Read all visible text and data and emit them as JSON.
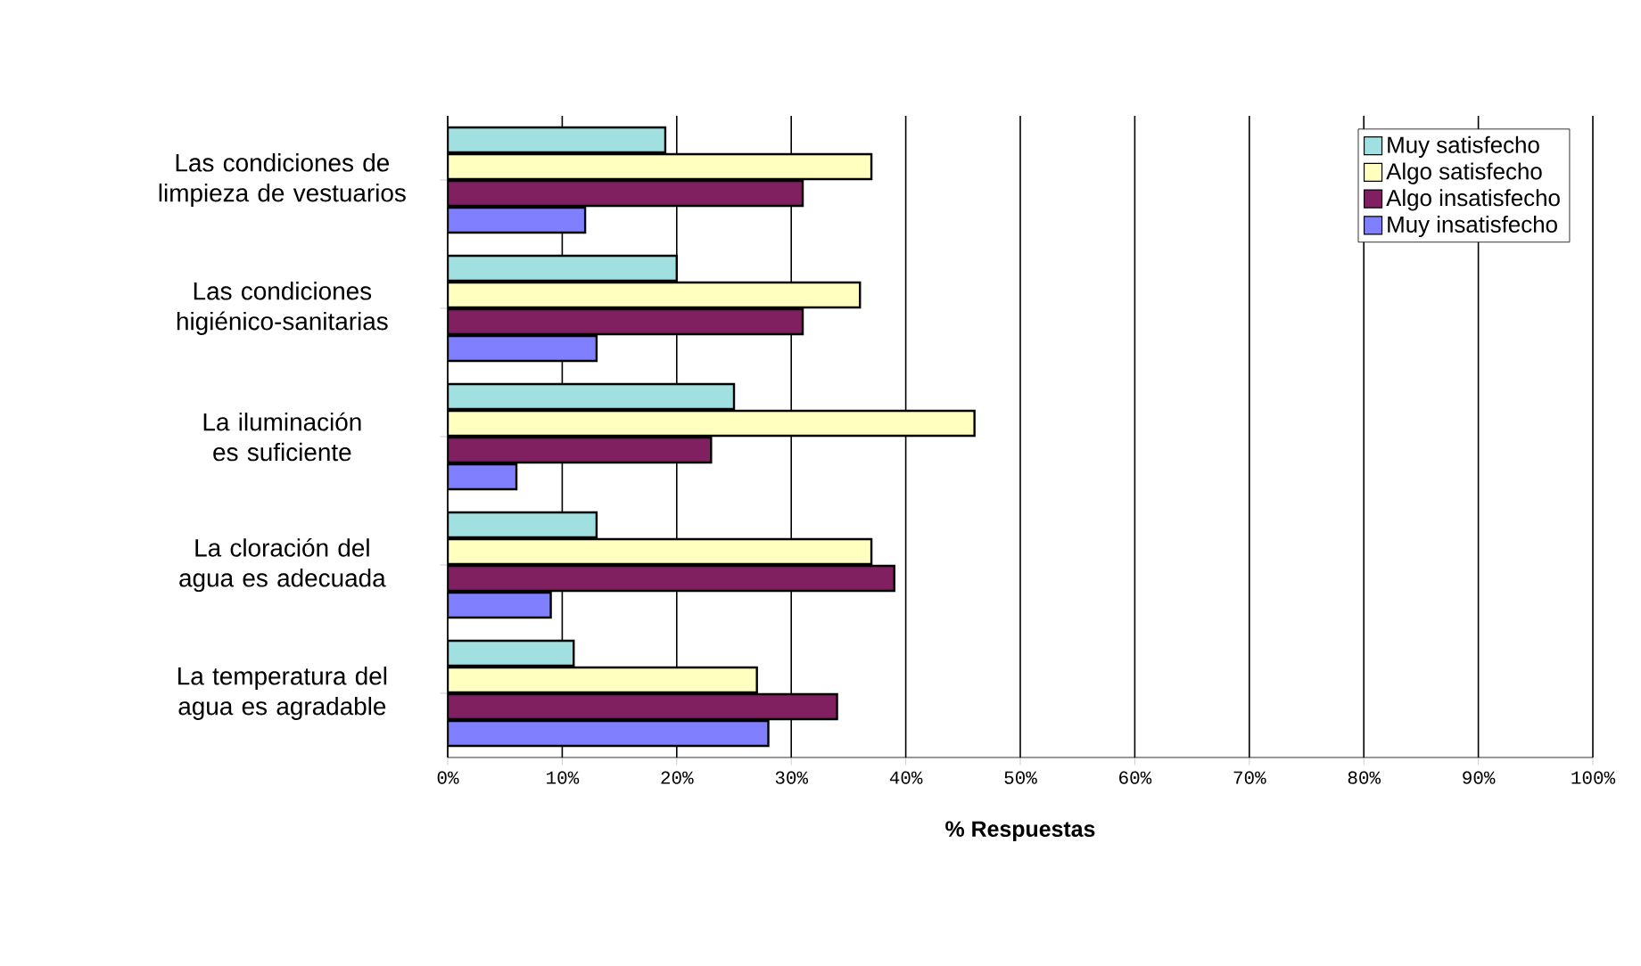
{
  "chart_data": {
    "type": "bar",
    "orientation": "horizontal",
    "xlabel": "% Respuestas",
    "categories": [
      "Las condiciones de limpieza de vestuarios",
      "Las condiciones higiénico-sanitarias",
      "La iluminación es suficiente",
      "La cloración del agua es adecuada",
      "La temperatura del agua es agradable"
    ],
    "series": [
      {
        "name": "Muy satisfecho",
        "color": "#a0e0e0",
        "values": [
          19,
          20,
          25,
          13,
          11
        ]
      },
      {
        "name": "Algo satisfecho",
        "color": "#ffffc0",
        "values": [
          37,
          36,
          46,
          37,
          27
        ]
      },
      {
        "name": "Algo insatisfecho",
        "color": "#802060",
        "values": [
          31,
          31,
          23,
          39,
          34
        ]
      },
      {
        "name": "Muy insatisfecho",
        "color": "#8080ff",
        "values": [
          12,
          13,
          6,
          9,
          28
        ]
      }
    ],
    "xlim": [
      0,
      100
    ],
    "xticks": [
      {
        "value": 0,
        "label": "0%"
      },
      {
        "value": 10,
        "label": "10%"
      },
      {
        "value": 20,
        "label": "20%"
      },
      {
        "value": 30,
        "label": "30%"
      },
      {
        "value": 40,
        "label": "40%"
      },
      {
        "value": 50,
        "label": "50%"
      },
      {
        "value": 60,
        "label": "60%"
      },
      {
        "value": 70,
        "label": "70%"
      },
      {
        "value": 80,
        "label": "80%"
      },
      {
        "value": 90,
        "label": "90%"
      },
      {
        "value": 100,
        "label": "100%"
      }
    ],
    "grid": "x",
    "legend": "top right"
  }
}
